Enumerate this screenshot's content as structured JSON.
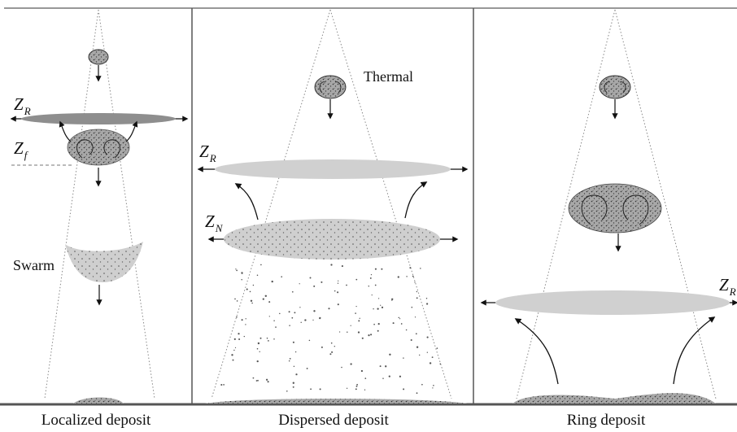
{
  "panels": [
    {
      "caption": "Localized deposit",
      "labels": {
        "zr": {
          "base": "Z",
          "sub": "R"
        },
        "zf": {
          "base": "Z",
          "sub": "f"
        },
        "swarm": "Swarm"
      }
    },
    {
      "caption": "Dispersed deposit",
      "labels": {
        "thermal": "Thermal",
        "zr": {
          "base": "Z",
          "sub": "R"
        },
        "zn": {
          "base": "Z",
          "sub": "N"
        }
      }
    },
    {
      "caption": "Ring deposit",
      "labels": {
        "zr": {
          "base": "Z",
          "sub": "R"
        }
      }
    }
  ],
  "colors": {
    "frame": "#555555",
    "ground": "#666666",
    "light_disk": "#d4d4d4",
    "mid_disk": "#b8b8b8",
    "thermal_fill": "#9a9a9a",
    "dots": "#444444",
    "cone": "#888888"
  }
}
